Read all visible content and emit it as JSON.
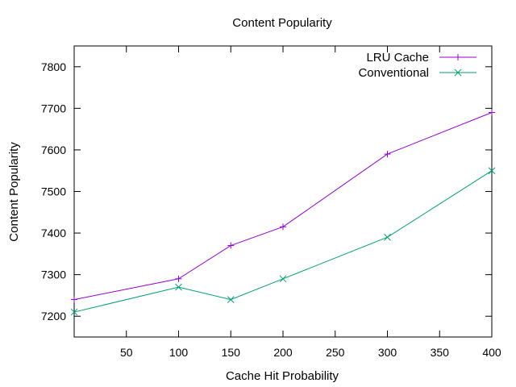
{
  "chart_data": {
    "type": "line",
    "title": "Content Popularity",
    "xlabel": "Cache Hit Probability",
    "ylabel": "Content Popularity",
    "xlim": [
      0,
      400
    ],
    "ylim": [
      7150,
      7850
    ],
    "xticks": [
      50,
      100,
      150,
      200,
      250,
      300,
      350,
      400
    ],
    "yticks": [
      7200,
      7300,
      7400,
      7500,
      7600,
      7700,
      7800
    ],
    "x": [
      0,
      100,
      150,
      200,
      300,
      400
    ],
    "grid": false,
    "legend_position": "top-right",
    "series": [
      {
        "name": "LRU Cache",
        "color": "#9400d3",
        "marker": "plus",
        "values": [
          7240,
          7290,
          7370,
          7415,
          7590,
          7690
        ]
      },
      {
        "name": "Conventional",
        "color": "#009e73",
        "marker": "cross",
        "values": [
          7210,
          7270,
          7240,
          7290,
          7390,
          7550
        ]
      }
    ]
  }
}
